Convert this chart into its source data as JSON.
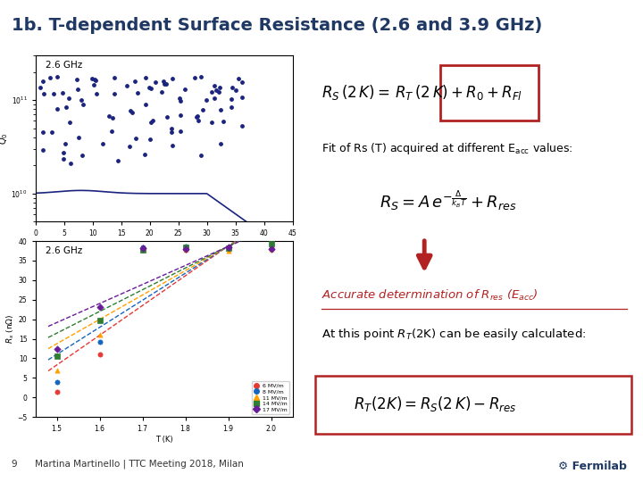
{
  "title": "1b. T-dependent Surface Resistance (2.6 and 3.9 GHz)",
  "title_color": "#1F3864",
  "title_fontsize": 14,
  "bg_color": "#FFFFFF",
  "header_line_color": "#5BA3C9",
  "footer_bar_color": "#A8D4E6",
  "footer_text": "9      Martina Martinello | TTC Meeting 2018, Milan",
  "fermilab_color": "#1F3864",
  "plot1_label": "2.6 GHz",
  "plot2_label": "2.6 GHz",
  "dark_blue": "#1A237E",
  "red_color": "#B22222",
  "scatter_colors": [
    "#E53935",
    "#1565C0",
    "#FFA000",
    "#2E7D32",
    "#6A1B9A"
  ],
  "scatter_labels": [
    "6 MV/m",
    "8 MV/m",
    "11 MV/m",
    "14 MV/m",
    "17 MV/m"
  ]
}
